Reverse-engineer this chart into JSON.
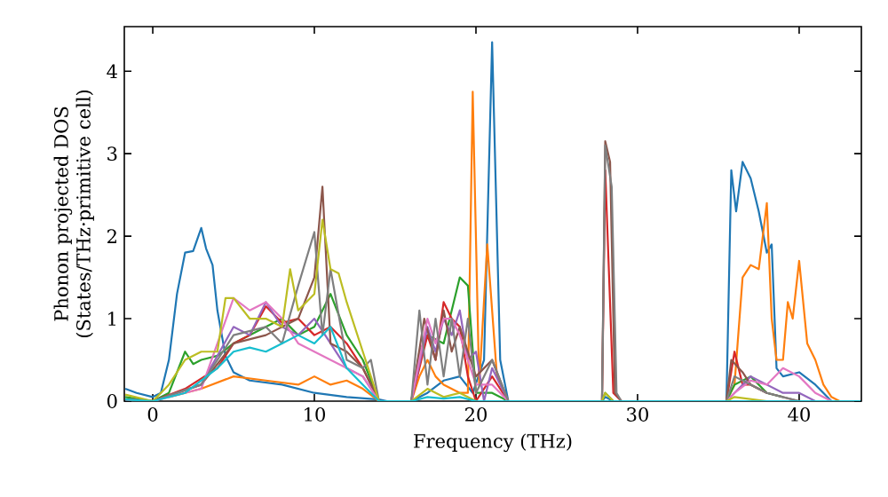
{
  "chart_data": {
    "type": "line",
    "xlabel": "Frequency (THz)",
    "ylabel": "Phonon projected DOS (States/THz·primitive cell)",
    "xlim": [
      -1.76,
      43.85
    ],
    "ylim": [
      0,
      4.54
    ],
    "xticks": [
      0,
      10,
      20,
      30,
      40
    ],
    "yticks": [
      0,
      1,
      2,
      3,
      4
    ],
    "series": [
      {
        "color": "#1f77b4",
        "x": [
          -1.7,
          -1,
          0,
          0.5,
          1,
          1.5,
          2,
          2.5,
          3,
          3.3,
          3.7,
          4,
          4.5,
          5,
          6,
          8,
          10,
          12,
          14,
          14.5,
          16,
          17,
          18,
          19,
          19.8,
          20.5,
          21,
          21.5,
          22,
          27.8,
          28,
          28.5,
          35.5,
          35.8,
          36.1,
          36.5,
          37,
          37.5,
          38,
          38.3,
          38.6,
          39,
          40,
          41,
          42,
          43.8
        ],
        "values": [
          0.15,
          0.1,
          0.05,
          0.1,
          0.5,
          1.3,
          1.8,
          1.82,
          2.1,
          1.85,
          1.65,
          1.1,
          0.55,
          0.35,
          0.25,
          0.2,
          0.1,
          0.05,
          0.02,
          0,
          0,
          0.1,
          0.25,
          0.3,
          0.1,
          0.5,
          4.35,
          0.5,
          0,
          0,
          0.05,
          0,
          0,
          2.8,
          2.3,
          2.9,
          2.7,
          2.3,
          1.8,
          1.9,
          0.4,
          0.3,
          0.35,
          0.2,
          0,
          0
        ]
      },
      {
        "color": "#ff7f0e",
        "x": [
          1,
          3,
          5,
          7,
          9,
          10,
          11,
          12,
          13,
          14,
          16,
          16.5,
          17,
          17.5,
          18,
          19,
          19.5,
          19.8,
          20.2,
          20.7,
          21.3,
          22,
          35.5,
          36,
          36.5,
          37,
          37.5,
          38,
          38.3,
          38.6,
          39,
          39.3,
          39.6,
          40,
          40.5,
          41,
          41.5,
          42,
          42.5
        ],
        "values": [
          0.05,
          0.15,
          0.3,
          0.25,
          0.2,
          0.3,
          0.2,
          0.25,
          0.15,
          0,
          0,
          0.3,
          0.5,
          0.3,
          0.2,
          0.1,
          0.1,
          3.75,
          0.2,
          1.9,
          0.3,
          0,
          0,
          0.2,
          1.5,
          1.65,
          1.6,
          2.4,
          1.0,
          0.5,
          0.5,
          1.2,
          1.0,
          1.7,
          0.7,
          0.5,
          0.2,
          0.05,
          0
        ]
      },
      {
        "color": "#2ca02c",
        "x": [
          -1.7,
          0,
          1,
          2,
          2.5,
          3,
          4,
          5,
          6,
          7,
          8,
          9,
          10,
          11,
          12,
          13,
          14,
          16,
          16.5,
          17,
          18,
          19,
          19.5,
          20,
          21,
          22,
          27.8,
          28,
          28.5,
          35.5,
          36,
          37,
          38,
          39
        ],
        "values": [
          0.05,
          0,
          0.1,
          0.6,
          0.45,
          0.5,
          0.55,
          0.7,
          0.8,
          0.9,
          1.0,
          0.8,
          0.9,
          1.3,
          0.8,
          0.5,
          0,
          0,
          0.6,
          0.8,
          0.7,
          1.5,
          1.4,
          0.1,
          0.1,
          0,
          0,
          0.1,
          0,
          0,
          0.2,
          0.3,
          0.1,
          0.05
        ]
      },
      {
        "color": "#d62728",
        "x": [
          -1.7,
          0,
          2,
          4,
          5,
          6,
          7,
          8,
          9,
          10,
          11,
          12,
          13,
          14,
          16,
          16.5,
          17,
          17.5,
          18,
          18.5,
          19,
          19.5,
          20,
          21,
          22,
          27.8,
          28,
          28.5,
          29,
          35.5,
          36,
          36.5,
          37,
          38
        ],
        "values": [
          0.02,
          0,
          0.15,
          0.4,
          0.7,
          0.8,
          1.15,
          0.95,
          1.0,
          0.8,
          0.9,
          0.7,
          0.4,
          0,
          0,
          0.4,
          0.8,
          0.5,
          1.2,
          1.0,
          0.9,
          0.3,
          0,
          0.3,
          0,
          0,
          2.8,
          0.1,
          0,
          0,
          0.6,
          0.2,
          0.2,
          0.1
        ]
      },
      {
        "color": "#9467bd",
        "x": [
          -1.7,
          0,
          3,
          5,
          6,
          7,
          8,
          9,
          10,
          11,
          12,
          13,
          14,
          16,
          17,
          17.5,
          18,
          18.5,
          19,
          19.5,
          20,
          20.5,
          21,
          22,
          35.5,
          36,
          37,
          38,
          39,
          40,
          41
        ],
        "values": [
          0.02,
          0,
          0.2,
          0.9,
          0.8,
          1.2,
          0.9,
          0.8,
          1.0,
          0.7,
          0.4,
          0.3,
          0,
          0,
          0.9,
          0.6,
          1.0,
          0.8,
          1.1,
          0.5,
          0.6,
          0,
          0.4,
          0,
          0,
          0.1,
          0.3,
          0.2,
          0.1,
          0.1,
          0
        ]
      },
      {
        "color": "#8c564b",
        "x": [
          -1.7,
          0,
          3,
          5,
          7,
          9,
          10,
          10.5,
          11,
          12,
          13,
          14,
          16,
          16.8,
          17.5,
          18,
          18.5,
          19,
          20,
          21,
          22,
          27.8,
          28,
          28.3,
          28.6,
          29,
          35.5,
          35.8,
          36.5,
          37,
          38,
          40
        ],
        "values": [
          0.02,
          0,
          0.2,
          0.7,
          0.8,
          1.0,
          1.5,
          2.6,
          0.7,
          0.6,
          0.4,
          0,
          0,
          1.0,
          0.5,
          1.1,
          0.6,
          0.9,
          0.3,
          0.5,
          0,
          0,
          3.15,
          2.9,
          0.1,
          0,
          0,
          0.5,
          0.35,
          0.2,
          0.1,
          0
        ]
      },
      {
        "color": "#e377c2",
        "x": [
          -1.7,
          0,
          3,
          5,
          6,
          7,
          8,
          9,
          10,
          11,
          12,
          13,
          14,
          16,
          17,
          17.5,
          18,
          18.5,
          19,
          20,
          21,
          22,
          35.5,
          36,
          37,
          38,
          39,
          40,
          41,
          42
        ],
        "values": [
          0.02,
          0,
          0.15,
          1.25,
          1.1,
          1.2,
          1.0,
          0.7,
          0.6,
          0.5,
          0.4,
          0.3,
          0,
          0,
          1.0,
          0.7,
          1.0,
          1.0,
          0.8,
          0.2,
          0.2,
          0,
          0,
          0.1,
          0.25,
          0.2,
          0.4,
          0.3,
          0.1,
          0
        ]
      },
      {
        "color": "#7f7f7f",
        "x": [
          -1.7,
          0,
          3,
          5,
          7,
          8,
          9,
          10,
          10.5,
          11,
          12,
          13,
          13.5,
          14,
          16,
          16.5,
          17,
          17.5,
          18,
          18.5,
          19,
          19.5,
          20,
          21,
          22,
          27.8,
          28,
          28.4,
          28.7,
          29,
          35.5,
          36,
          37,
          38,
          40
        ],
        "values": [
          0.02,
          0,
          0.2,
          0.8,
          0.9,
          0.7,
          1.4,
          2.05,
          0.8,
          1.6,
          0.5,
          0.4,
          0.5,
          0,
          0,
          1.1,
          0.2,
          1.0,
          0.3,
          1.0,
          0.3,
          1.0,
          0.1,
          0.5,
          0,
          0,
          3.1,
          2.6,
          0.1,
          0,
          0,
          0.3,
          0.2,
          0.1,
          0
        ]
      },
      {
        "color": "#bcbd22",
        "x": [
          -1.7,
          0,
          1,
          2,
          3,
          4,
          4.5,
          5,
          6,
          7,
          8,
          8.5,
          9,
          10,
          10.5,
          11,
          11.5,
          12,
          13,
          14,
          16,
          17,
          18,
          19,
          20,
          22,
          27.8,
          28,
          28.5,
          35.5,
          36,
          38
        ],
        "values": [
          0.08,
          0,
          0.2,
          0.5,
          0.6,
          0.6,
          1.25,
          1.25,
          1.0,
          1.0,
          0.9,
          1.6,
          1.1,
          1.3,
          2.2,
          1.6,
          1.55,
          1.2,
          0.6,
          0,
          0,
          0.15,
          0.05,
          0.1,
          0,
          0,
          0,
          0.1,
          0,
          0,
          0.05,
          0
        ]
      },
      {
        "color": "#17becf",
        "x": [
          -1.7,
          0,
          2,
          4,
          5,
          6,
          7,
          8,
          9,
          10,
          11,
          12,
          13,
          14,
          16,
          17,
          18,
          19,
          20,
          22,
          43.8
        ],
        "values": [
          0.02,
          0,
          0.1,
          0.4,
          0.6,
          0.65,
          0.6,
          0.7,
          0.8,
          0.7,
          0.9,
          0.4,
          0.2,
          0,
          0,
          0.05,
          0.03,
          0.05,
          0,
          0,
          0
        ]
      }
    ]
  }
}
